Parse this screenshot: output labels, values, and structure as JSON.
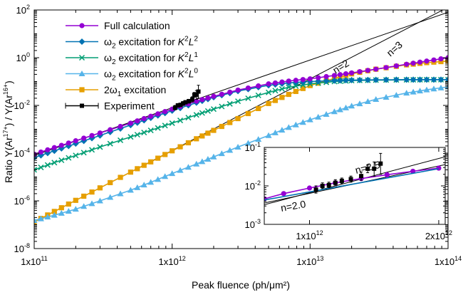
{
  "chart_data": [
    {
      "type": "line",
      "xlabel": "Peak fluence (ph/μm²)",
      "ylabel": "Ratio Y(Ar¹⁷⁺) / Y(Ar¹⁶⁺)",
      "x_scale": "log",
      "y_scale": "log",
      "xlim": [
        100000000000.0,
        100000000000000.0
      ],
      "ylim": [
        1e-08,
        100
      ],
      "x_ticks": [
        {
          "value": 100000000000.0,
          "label": "1x10",
          "exp": "11"
        },
        {
          "value": 1000000000000.0,
          "label": "1x10",
          "exp": "12"
        },
        {
          "value": 10000000000000.0,
          "label": "1x10",
          "exp": "13"
        },
        {
          "value": 100000000000000.0,
          "label": "1x10",
          "exp": "14"
        }
      ],
      "y_ticks": [
        {
          "value": 1e-08,
          "label": "10",
          "exp": "-8"
        },
        {
          "value": 1e-06,
          "label": "10",
          "exp": "-6"
        },
        {
          "value": 0.0001,
          "label": "10",
          "exp": "-4"
        },
        {
          "value": 0.01,
          "label": "10",
          "exp": "-2"
        },
        {
          "value": 1,
          "label": "10",
          "exp": "0"
        },
        {
          "value": 100,
          "label": "10",
          "exp": "2"
        }
      ],
      "legend_position": "top-left",
      "series": [
        {
          "name": "Full calculation",
          "color": "#9400d3",
          "marker": "circle",
          "x": [
            100000000000.0,
            140000000000.0,
            200000000000.0,
            300000000000.0,
            500000000000.0,
            700000000000.0,
            1000000000000.0,
            1500000000000.0,
            2000000000000.0,
            3000000000000.0,
            5000000000000.0,
            7000000000000.0,
            10000000000000.0,
            15000000000000.0,
            20000000000000.0,
            30000000000000.0,
            50000000000000.0,
            70000000000000.0,
            100000000000000.0
          ],
          "y": [
            9e-05,
            0.00017,
            0.00033,
            0.0007,
            0.0018,
            0.0035,
            0.007,
            0.015,
            0.024,
            0.044,
            0.08,
            0.105,
            0.13,
            0.18,
            0.23,
            0.33,
            0.53,
            0.72,
            1.0
          ]
        },
        {
          "name": "ω2 excitation for K2L2",
          "label_parts": [
            "ω",
            "2",
            " excitation for ",
            "K",
            "2",
            "L",
            "2"
          ],
          "color": "#0072b2",
          "marker": "diamond",
          "x": [
            100000000000.0,
            140000000000.0,
            200000000000.0,
            300000000000.0,
            500000000000.0,
            700000000000.0,
            1000000000000.0,
            1500000000000.0,
            2000000000000.0,
            3000000000000.0,
            5000000000000.0,
            7000000000000.0,
            10000000000000.0,
            15000000000000.0,
            20000000000000.0,
            30000000000000.0,
            50000000000000.0,
            70000000000000.0,
            100000000000000.0
          ],
          "y": [
            6.5e-05,
            0.000125,
            0.00025,
            0.00055,
            0.0015,
            0.003,
            0.006,
            0.013,
            0.022,
            0.04,
            0.07,
            0.088,
            0.1,
            0.11,
            0.115,
            0.118,
            0.12,
            0.12,
            0.12
          ]
        },
        {
          "name": "ω2 excitation for K2L1",
          "label_parts": [
            "ω",
            "2",
            " excitation for ",
            "K",
            "2",
            "L",
            "1"
          ],
          "color": "#009e73",
          "marker": "x",
          "x": [
            100000000000.0,
            140000000000.0,
            200000000000.0,
            300000000000.0,
            500000000000.0,
            700000000000.0,
            1000000000000.0,
            1500000000000.0,
            2000000000000.0,
            3000000000000.0,
            5000000000000.0,
            7000000000000.0,
            10000000000000.0,
            15000000000000.0,
            20000000000000.0,
            30000000000000.0,
            50000000000000.0,
            70000000000000.0,
            100000000000000.0
          ],
          "y": [
            2e-05,
            4e-05,
            8e-05,
            0.00018,
            0.00048,
            0.0009,
            0.0018,
            0.004,
            0.007,
            0.015,
            0.035,
            0.058,
            0.08,
            0.1,
            0.11,
            0.115,
            0.118,
            0.12,
            0.12
          ]
        },
        {
          "name": "ω2 excitation for K2L0",
          "label_parts": [
            "ω",
            "2",
            " excitation for ",
            "K",
            "2",
            "L",
            "0"
          ],
          "color": "#56b4e9",
          "marker": "triangle",
          "x": [
            100000000000.0,
            140000000000.0,
            200000000000.0,
            300000000000.0,
            500000000000.0,
            700000000000.0,
            1000000000000.0,
            1500000000000.0,
            2000000000000.0,
            3000000000000.0,
            5000000000000.0,
            7000000000000.0,
            10000000000000.0,
            15000000000000.0,
            20000000000000.0,
            30000000000000.0,
            50000000000000.0,
            70000000000000.0,
            100000000000000.0
          ],
          "y": [
            1.5e-07,
            2.5e-07,
            4.5e-07,
            1e-06,
            2.8e-06,
            6e-06,
            1.4e-05,
            3.5e-05,
            7e-05,
            0.00018,
            0.00055,
            0.0012,
            0.0025,
            0.0055,
            0.0095,
            0.018,
            0.033,
            0.045,
            0.06
          ]
        },
        {
          "name": "2ω1 excitation",
          "label_parts": [
            "2ω",
            "1",
            " excitation",
            "",
            "",
            "",
            ""
          ],
          "color": "#e69f00",
          "marker": "square",
          "x": [
            100000000000.0,
            140000000000.0,
            200000000000.0,
            300000000000.0,
            500000000000.0,
            700000000000.0,
            1000000000000.0,
            1500000000000.0,
            2000000000000.0,
            3000000000000.0,
            5000000000000.0,
            7000000000000.0,
            10000000000000.0,
            15000000000000.0,
            20000000000000.0,
            30000000000000.0,
            50000000000000.0,
            70000000000000.0,
            100000000000000.0
          ],
          "y": [
            1.3e-07,
            3.6e-07,
            1.05e-06,
            3.5e-06,
            1.6e-05,
            4.3e-05,
            0.000125,
            0.0004,
            0.0009,
            0.0028,
            0.012,
            0.029,
            0.068,
            0.135,
            0.21,
            0.33,
            0.5,
            0.62,
            0.72
          ]
        },
        {
          "name": "Experiment",
          "color": "#000000",
          "marker": "filled-square",
          "errorbars": true,
          "x": [
            1050000000000.0,
            1100000000000.0,
            1150000000000.0,
            1200000000000.0,
            1250000000000.0,
            1320000000000.0,
            1400000000000.0,
            1450000000000.0,
            1500000000000.0,
            1550000000000.0
          ],
          "y": [
            0.008,
            0.01,
            0.0105,
            0.012,
            0.0135,
            0.015,
            0.018,
            0.028,
            0.028,
            0.038
          ],
          "yerr_low": [
            0.0065,
            0.0085,
            0.009,
            0.01,
            0.0115,
            0.0125,
            0.014,
            0.022,
            0.018,
            0.02
          ],
          "yerr_high": [
            0.01,
            0.012,
            0.0125,
            0.0145,
            0.016,
            0.018,
            0.023,
            0.035,
            0.042,
            0.07
          ]
        }
      ],
      "reference_lines": [
        {
          "label": "n=2",
          "slope": 2,
          "x_range": [
            100000000000.0,
            100000000000000.0
          ],
          "anchor_x": 10000000000000.0,
          "anchor_y": 0.8
        },
        {
          "label": "n=3",
          "slope": 3,
          "x_range": [
            100000000000.0,
            100000000000000.0
          ],
          "anchor_x": 1000000000000.0,
          "anchor_y": 0.00013
        }
      ]
    },
    {
      "type": "line",
      "role": "inset",
      "x_scale": "linear",
      "y_scale": "log",
      "xlim": [
        650000000000.0,
        2050000000000.0
      ],
      "ylim": [
        0.001,
        0.1
      ],
      "x_ticks": [
        {
          "value": 1000000000000.0,
          "label": "1x10",
          "exp": "12"
        },
        {
          "value": 2000000000000.0,
          "label": "2x10",
          "exp": "12"
        }
      ],
      "y_ticks": [
        {
          "value": 0.001,
          "label": "10",
          "exp": "-3"
        },
        {
          "value": 0.01,
          "label": "10",
          "exp": "-2"
        },
        {
          "value": 0.1,
          "label": "10",
          "exp": "-1"
        }
      ],
      "series": [
        {
          "name": "Full calculation",
          "color": "#9400d3",
          "marker": "circle",
          "x": [
            650000000000.0,
            800000000000.0,
            1000000000000.0,
            1200000000000.0,
            1400000000000.0,
            1600000000000.0,
            1800000000000.0,
            2000000000000.0
          ],
          "y": [
            0.0046,
            0.0063,
            0.0088,
            0.012,
            0.0155,
            0.0195,
            0.024,
            0.029
          ]
        },
        {
          "name": "ω2 excitation for K2L2",
          "color": "#0072b2",
          "marker": "none",
          "x": [
            650000000000.0,
            2000000000000.0
          ],
          "y": [
            0.0043,
            0.028
          ]
        },
        {
          "name": "Experiment",
          "color": "#000000",
          "marker": "filled-square",
          "errorbars": true,
          "x": [
            1050000000000.0,
            1100000000000.0,
            1150000000000.0,
            1200000000000.0,
            1250000000000.0,
            1320000000000.0,
            1400000000000.0,
            1450000000000.0,
            1500000000000.0,
            1550000000000.0
          ],
          "y": [
            0.008,
            0.01,
            0.0105,
            0.012,
            0.0135,
            0.015,
            0.018,
            0.028,
            0.028,
            0.038
          ],
          "yerr_low": [
            0.0065,
            0.0085,
            0.009,
            0.01,
            0.0115,
            0.0125,
            0.014,
            0.022,
            0.018,
            0.02
          ],
          "yerr_high": [
            0.01,
            0.012,
            0.0125,
            0.0145,
            0.016,
            0.018,
            0.023,
            0.035,
            0.042,
            0.07
          ]
        }
      ],
      "reference_lines": [
        {
          "label": "n=2.0",
          "slope": 2.0,
          "anchor_x": 1000000000000.0,
          "anchor_y": 0.0085
        },
        {
          "label": "n=2.5",
          "slope": 2.5,
          "anchor_x": 1000000000000.0,
          "anchor_y": 0.0095
        }
      ]
    }
  ]
}
